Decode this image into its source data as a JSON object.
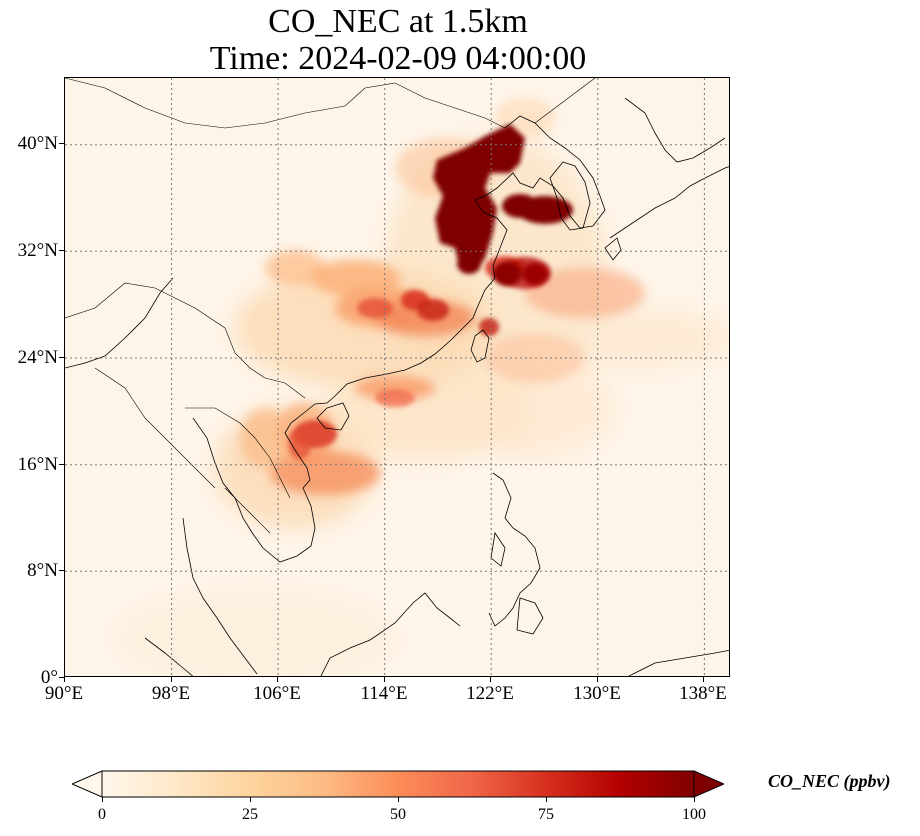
{
  "title": {
    "line1": "CO_NEC at 1.5km",
    "line2": "Time: 2024-02-09 04:00:00"
  },
  "map": {
    "projection": "PlateCarree",
    "lon_range": [
      90,
      140
    ],
    "lat_range": [
      0,
      45
    ],
    "gridlines": "dotted",
    "background_color": "#fef5e9",
    "x_ticks": [
      "90°E",
      "98°E",
      "106°E",
      "114°E",
      "122°E",
      "130°E",
      "138°E"
    ],
    "y_ticks": [
      "0°",
      "8°N",
      "16°N",
      "24°N",
      "32°N",
      "40°N"
    ]
  },
  "colorbar": {
    "label": "CO_NEC (ppbv)",
    "colormap": "OrRd",
    "ticks": [
      "0",
      "25",
      "50",
      "75",
      "100"
    ],
    "range": [
      0,
      100
    ],
    "extend": "both",
    "colors": [
      "#fff7ec",
      "#fdd49e",
      "#fc8d59",
      "#d7301f",
      "#7f0000"
    ]
  }
}
